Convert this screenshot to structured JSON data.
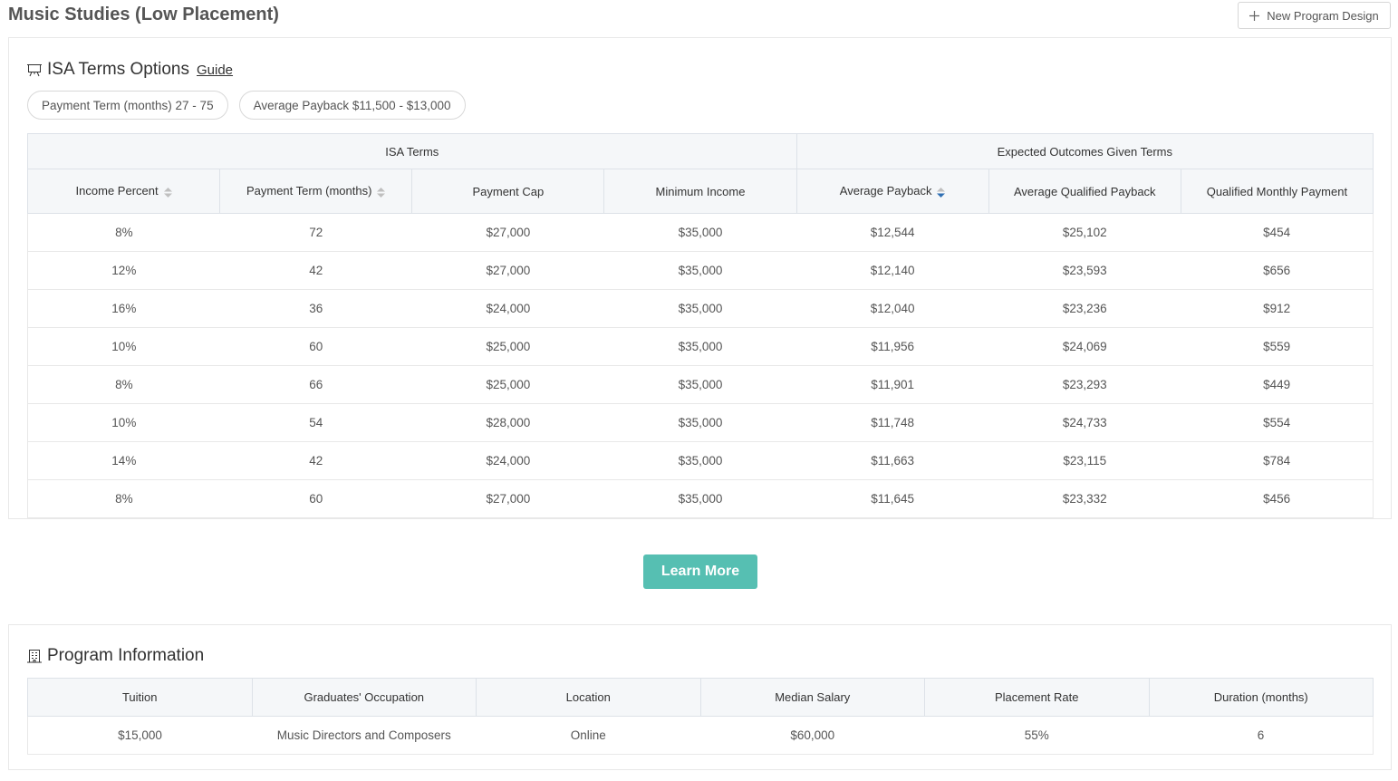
{
  "header": {
    "title": "Music Studies (Low Placement)",
    "button": "New Program Design"
  },
  "isa": {
    "title": "ISA Terms Options",
    "guide": "Guide",
    "filters": [
      "Payment Term (months) 27 - 75",
      "Average Payback $11,500 - $13,000"
    ],
    "groups": [
      "ISA Terms",
      "Expected Outcomes Given Terms"
    ],
    "columns": [
      "Income Percent",
      "Payment Term (months)",
      "Payment Cap",
      "Minimum Income",
      "Average Payback",
      "Average Qualified Payback",
      "Qualified Monthly Payment"
    ],
    "rows": [
      [
        "8%",
        "72",
        "$27,000",
        "$35,000",
        "$12,544",
        "$25,102",
        "$454"
      ],
      [
        "12%",
        "42",
        "$27,000",
        "$35,000",
        "$12,140",
        "$23,593",
        "$656"
      ],
      [
        "16%",
        "36",
        "$24,000",
        "$35,000",
        "$12,040",
        "$23,236",
        "$912"
      ],
      [
        "10%",
        "60",
        "$25,000",
        "$35,000",
        "$11,956",
        "$24,069",
        "$559"
      ],
      [
        "8%",
        "66",
        "$25,000",
        "$35,000",
        "$11,901",
        "$23,293",
        "$449"
      ],
      [
        "10%",
        "54",
        "$28,000",
        "$35,000",
        "$11,748",
        "$24,733",
        "$554"
      ],
      [
        "14%",
        "42",
        "$24,000",
        "$35,000",
        "$11,663",
        "$23,115",
        "$784"
      ],
      [
        "8%",
        "60",
        "$27,000",
        "$35,000",
        "$11,645",
        "$23,332",
        "$456"
      ]
    ]
  },
  "learn_more": "Learn More",
  "program": {
    "title": "Program Information",
    "columns": [
      "Tuition",
      "Graduates' Occupation",
      "Location",
      "Median Salary",
      "Placement Rate",
      "Duration (months)"
    ],
    "rows": [
      [
        "$15,000",
        "Music Directors and Composers",
        "Online",
        "$60,000",
        "55%",
        "6"
      ]
    ]
  }
}
